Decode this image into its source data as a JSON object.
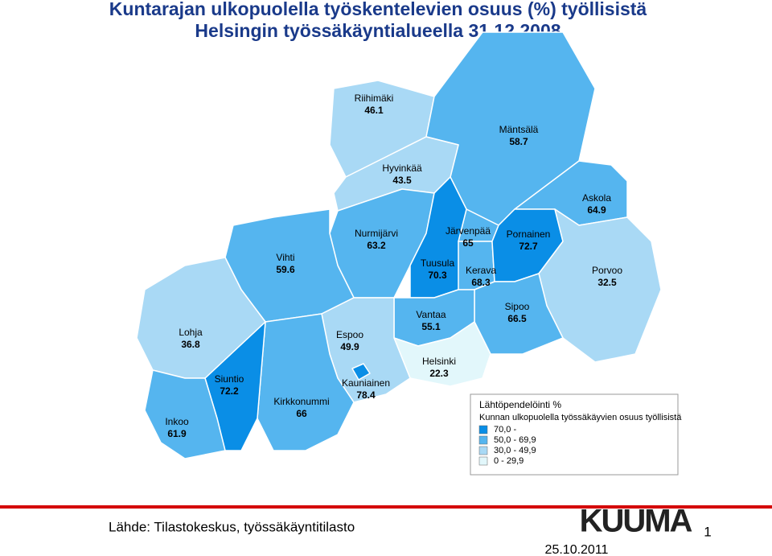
{
  "title": [
    "Kuntarajan ulkopuolella työskentelevien osuus (%) työllisistä",
    "Helsingin työssäkäyntialueella 31.12.2008"
  ],
  "map": {
    "type": "choropleth",
    "regions": [
      {
        "name": "Riihimäki",
        "value": 46.1
      },
      {
        "name": "Mäntsälä",
        "value": 58.7
      },
      {
        "name": "Hyvinkää",
        "value": 43.5
      },
      {
        "name": "Askola",
        "value": 64.9
      },
      {
        "name": "Nurmijärvi",
        "value": 63.2
      },
      {
        "name": "Vihti",
        "value": 59.6
      },
      {
        "name": "Järvenpää",
        "value": 65
      },
      {
        "name": "Tuusula",
        "value": 70.3
      },
      {
        "name": "Kerava",
        "value": 68.3
      },
      {
        "name": "Pornainen",
        "value": 72.7
      },
      {
        "name": "Porvoo",
        "value": 32.5
      },
      {
        "name": "Sipoo",
        "value": 66.5
      },
      {
        "name": "Vantaa",
        "value": 55.1
      },
      {
        "name": "Helsinki",
        "value": 22.3
      },
      {
        "name": "Espoo",
        "value": 49.9
      },
      {
        "name": "Kauniainen",
        "value": 78.4
      },
      {
        "name": "Kirkkonummi",
        "value": 66
      },
      {
        "name": "Siuntio",
        "value": 72.2
      },
      {
        "name": "Lohja",
        "value": 36.8
      },
      {
        "name": "Inkoo",
        "value": 61.9
      }
    ]
  },
  "legend": {
    "title": "Lähtöpendelöinti %",
    "subtitle": "Kunnan ulkopuolella työssäkäyvien osuus työllisistä",
    "classes": [
      {
        "label": "70,0 -",
        "color": "#0a8ee6"
      },
      {
        "label": "50,0 - 69,9",
        "color": "#55b5ef"
      },
      {
        "label": "30,0 - 49,9",
        "color": "#a9d9f5"
      },
      {
        "label": "0   - 29,9",
        "color": "#e2f7fb"
      }
    ]
  },
  "footer": {
    "source": "Lähde: Tilastokeskus, työssäkäyntitilasto",
    "logo": "KUUMA",
    "page": "1",
    "date": "25.10.2011"
  }
}
